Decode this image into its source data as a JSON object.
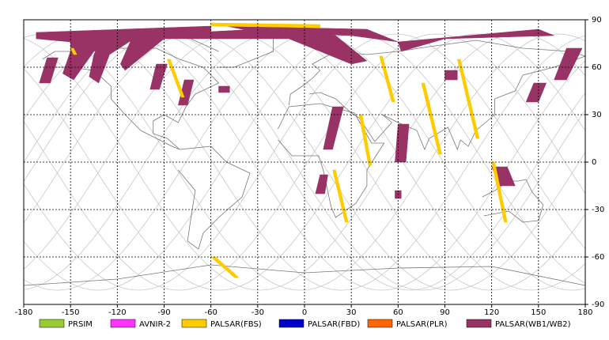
{
  "map": {
    "xlim": [
      -180,
      180
    ],
    "ylim": [
      -90,
      90
    ],
    "xticks": [
      -180,
      -150,
      -120,
      -90,
      -60,
      -30,
      0,
      30,
      60,
      90,
      120,
      150,
      180
    ],
    "yticks": [
      90,
      60,
      30,
      0,
      -30,
      -60,
      -90
    ]
  },
  "legend": [
    {
      "label": "PRSIM",
      "color": "#99cc33"
    },
    {
      "label": "AVNIR-2",
      "color": "#ff33ff"
    },
    {
      "label": "PALSAR(FBS)",
      "color": "#ffcc00"
    },
    {
      "label": "PALSAR(FBD)",
      "color": "#0000cc"
    },
    {
      "label": "PALSAR(PLR)",
      "color": "#ff6600"
    },
    {
      "label": "PALSAR(WB1/WB2)",
      "color": "#993366"
    }
  ]
}
